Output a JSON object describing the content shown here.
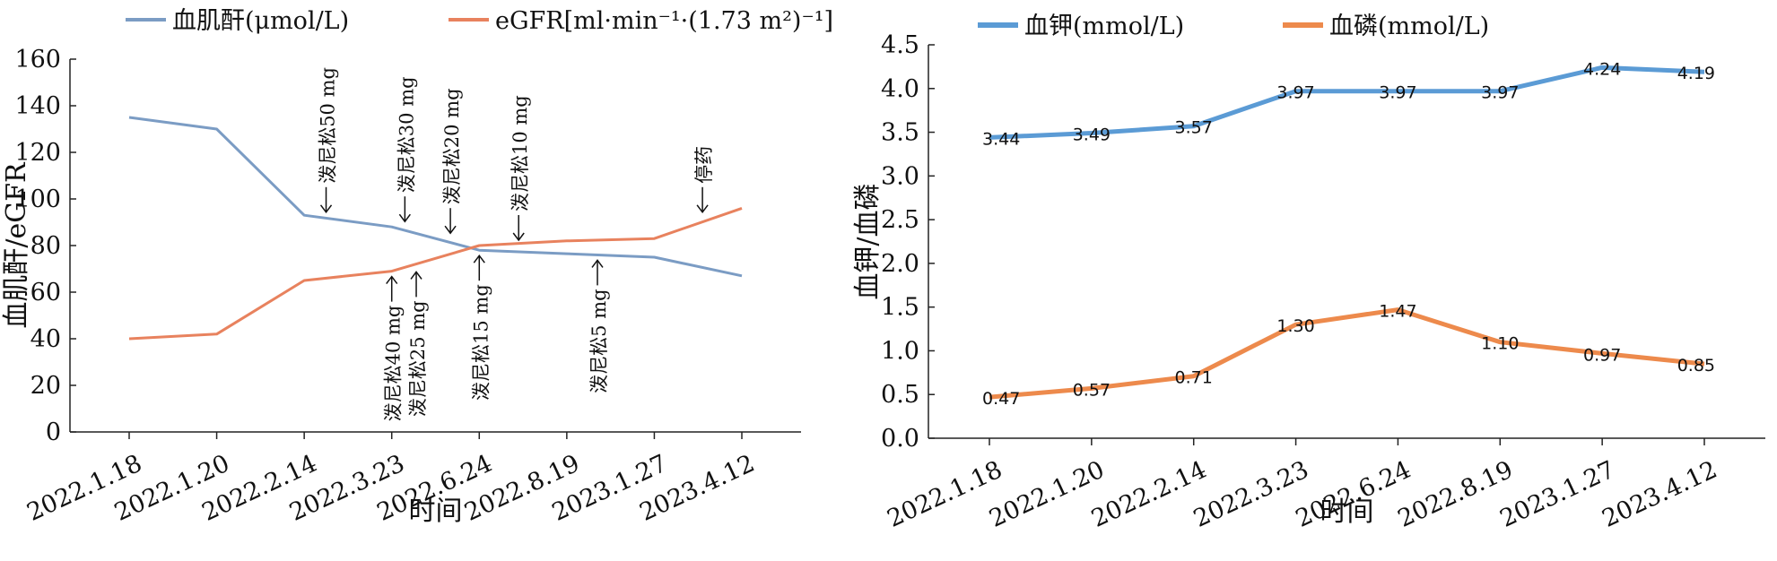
{
  "chart_data": [
    {
      "type": "line",
      "xlabel": "时间",
      "ylabel": "血肌酐/eGFR",
      "ylim": [
        0,
        160
      ],
      "yticks": [
        0,
        20,
        40,
        60,
        80,
        100,
        120,
        140,
        160
      ],
      "grid": false,
      "legend": "top",
      "categories": [
        "2022.1.18",
        "2022.1.20",
        "2022.2.14",
        "2022.3.23",
        "2022.6.24",
        "2022.8.19",
        "2023.1.27",
        "2023.4.12"
      ],
      "series": [
        {
          "name": "血肌酐(μmol/L)",
          "color": "#7b9cc4",
          "values": [
            135,
            130,
            93,
            88,
            78,
            76.5,
            75,
            67
          ]
        },
        {
          "name": "eGFR[ml·min⁻¹·(1.73 m²)⁻¹]",
          "color": "#e8825e",
          "values": [
            40,
            42,
            65,
            69,
            80,
            82,
            83,
            96
          ]
        }
      ],
      "annotations": [
        {
          "text": "泼尼松50 mg",
          "x": 2.25,
          "y": 92,
          "position": "above"
        },
        {
          "text": "泼尼松30 mg",
          "x": 3.15,
          "y": 88,
          "position": "above"
        },
        {
          "text": "泼尼松20 mg",
          "x": 3.67,
          "y": 83,
          "position": "above"
        },
        {
          "text": "泼尼松10 mg",
          "x": 4.45,
          "y": 80,
          "position": "above"
        },
        {
          "text": "停药",
          "x": 6.55,
          "y": 92,
          "position": "above"
        },
        {
          "text": "泼尼松40 mg",
          "x": 3.0,
          "y": 69,
          "position": "below"
        },
        {
          "text": "泼尼松25 mg",
          "x": 3.28,
          "y": 71,
          "position": "below"
        },
        {
          "text": "泼尼松15 mg",
          "x": 4.0,
          "y": 78,
          "position": "below"
        },
        {
          "text": "泼尼松5 mg",
          "x": 5.35,
          "y": 76,
          "position": "below"
        }
      ]
    },
    {
      "type": "line",
      "xlabel": "时间",
      "ylabel": "血钾/血磷",
      "ylim": [
        0,
        4.5
      ],
      "yticks": [
        0,
        0.5,
        1.0,
        1.5,
        2.0,
        2.5,
        3.0,
        3.5,
        4.0,
        4.5
      ],
      "grid": false,
      "legend": "top",
      "categories": [
        "2022.1.18",
        "2022.1.20",
        "2022.2.14",
        "2022.3.23",
        "2022.6.24",
        "2022.8.19",
        "2023.1.27",
        "2023.4.12"
      ],
      "series": [
        {
          "name": "血钾(mmol/L)",
          "color": "#5b9bd5",
          "values": [
            3.44,
            3.49,
            3.57,
            3.97,
            3.97,
            3.97,
            4.24,
            4.19
          ],
          "labels": [
            "3.44",
            "3.49",
            "3.57",
            "3.97",
            "3.97",
            "3.97",
            "4.24",
            "4.19"
          ]
        },
        {
          "name": "血磷(mmol/L)",
          "color": "#ed8a4c",
          "values": [
            0.47,
            0.57,
            0.71,
            1.3,
            1.47,
            1.1,
            0.97,
            0.85
          ],
          "labels": [
            "0.47",
            "0.57",
            "0.71",
            "1.30",
            "1.47",
            "1.10",
            "0.97",
            "0.85"
          ]
        }
      ]
    }
  ]
}
